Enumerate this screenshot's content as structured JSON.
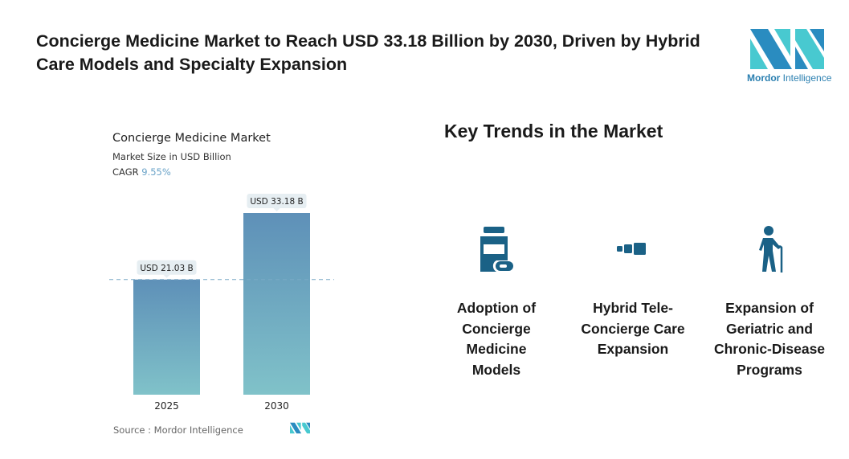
{
  "headline": "Concierge Medicine Market to Reach USD 33.18 Billion by 2030, Driven by Hybrid Care Models and Specialty Expansion",
  "brand": {
    "name_bold": "Mordor",
    "name_light": "Intelligence",
    "colors": {
      "dark": "#2a8cc0",
      "light": "#48c9d0"
    }
  },
  "chart_data": {
    "type": "bar",
    "title": "Concierge Medicine Market",
    "subtitle": "Market Size in USD Billion",
    "cagr_label": "CAGR",
    "cagr_value": "9.55%",
    "categories": [
      "2025",
      "2030"
    ],
    "values": [
      21.03,
      33.18
    ],
    "data_labels": [
      "USD 21.03 B",
      "USD 33.18 B"
    ],
    "ylim": [
      0,
      33.18
    ],
    "reference_line": 21.03,
    "colors": {
      "top": "#5e90b8",
      "bottom": "#80c2c9"
    }
  },
  "source": "Source :  Mordor Intelligence",
  "trends": {
    "title": "Key Trends in the Market",
    "icon_color": "#1a6186",
    "items": [
      {
        "icon": "medicine-bottle-icon",
        "label": "Adoption of Concierge Medicine Models"
      },
      {
        "icon": "growing-blocks-icon",
        "label": "Hybrid Tele-Concierge Care Expansion"
      },
      {
        "icon": "elderly-person-icon",
        "label": "Expansion of Geriatric and Chronic-Disease Programs"
      }
    ]
  }
}
